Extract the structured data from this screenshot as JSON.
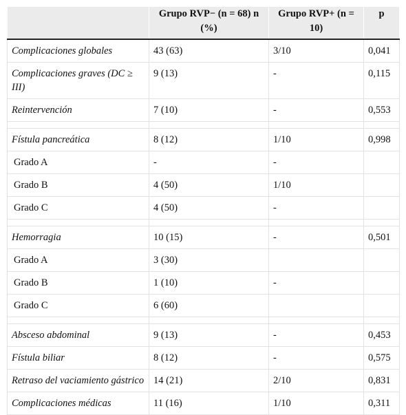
{
  "table": {
    "header": [
      null,
      "Grupo RVP− (n = 68) n (%)",
      "Grupo RVP+ (n = 10)",
      "p"
    ],
    "sections": [
      {
        "rows": [
          [
            "Complicaciones globales",
            "43 (63)",
            "3/10",
            "0,041"
          ],
          [
            "Complicaciones graves (DC ≥ III)",
            "9 (13)",
            "-",
            "0,115"
          ],
          [
            "Reintervención",
            "7 (10)",
            "-",
            "0,553"
          ]
        ]
      },
      {
        "rows": [
          [
            "Fístula pancreática",
            "8 (12)",
            "1/10",
            "0,998"
          ]
        ],
        "subrows": [
          [
            "Grado A",
            "-",
            "-",
            null
          ],
          [
            "Grado B",
            "4 (50)",
            "1/10",
            null
          ],
          [
            "Grado C",
            "4 (50)",
            "-",
            null
          ]
        ]
      },
      {
        "rows": [
          [
            "Hemorragia",
            "10 (15)",
            "-",
            "0,501"
          ]
        ],
        "subrows": [
          [
            "Grado A",
            "3 (30)",
            null,
            null
          ],
          [
            "Grado B",
            "1 (10)",
            "-",
            null
          ],
          [
            "Grado C",
            "6 (60)",
            null,
            null
          ]
        ]
      },
      {
        "rows": [
          [
            "Absceso abdominal",
            "9 (13)",
            "-",
            "0,453"
          ],
          [
            "Fístula biliar",
            "8 (12)",
            "-",
            "0,575"
          ],
          [
            "Retraso del vaciamiento gástrico",
            "14 (21)",
            "2/10",
            "0,831"
          ],
          [
            "Complicaciones médicas",
            "11 (16)",
            "1/10",
            "0,311"
          ]
        ]
      }
    ]
  }
}
